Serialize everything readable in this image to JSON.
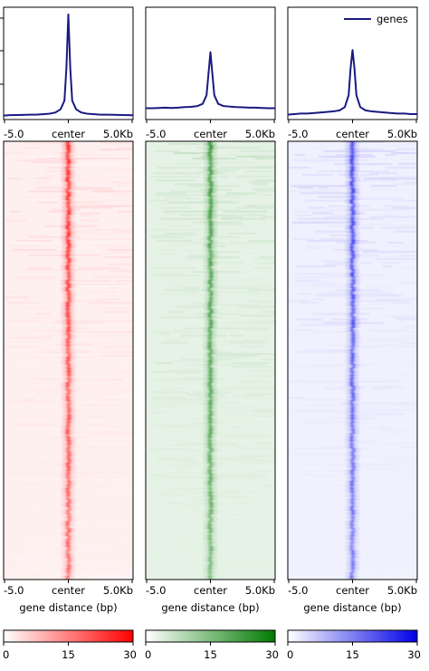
{
  "chart_data": {
    "type": "heatmap",
    "profile_legend": "genes",
    "x_ticks": [
      "-5.0",
      "center",
      "5.0Kb"
    ],
    "xlabel": "gene distance (bp)",
    "colorbar_ticks": [
      "0",
      "15",
      "30"
    ],
    "colorbar_range": [
      0,
      30
    ],
    "profile_x": [
      -5.0,
      -4.5,
      -4.0,
      -3.5,
      -3.0,
      -2.5,
      -2.0,
      -1.5,
      -1.0,
      -0.6,
      -0.3,
      -0.15,
      0,
      0.15,
      0.3,
      0.6,
      1.0,
      1.5,
      2.0,
      2.5,
      3.0,
      3.5,
      4.0,
      4.5,
      5.0
    ],
    "panels": [
      {
        "name": "red",
        "color": "#ff0000",
        "profile_line_color": "#1a1a80",
        "profile": [
          1.2,
          1.6,
          1.7,
          1.8,
          2.0,
          2.0,
          2.4,
          2.8,
          4.0,
          7.0,
          15.0,
          45.0,
          95.0,
          45.0,
          15.0,
          7.0,
          4.0,
          2.8,
          2.4,
          2.0,
          2.0,
          1.9,
          1.7,
          1.6,
          1.5
        ]
      },
      {
        "name": "green",
        "color": "#007a00",
        "profile_line_color": "#1a1a80",
        "profile": [
          8.0,
          8.0,
          8.2,
          8.5,
          8.2,
          8.5,
          9.0,
          9.2,
          10.0,
          12.0,
          20.0,
          40.0,
          60.0,
          40.0,
          20.0,
          12.0,
          10.0,
          9.5,
          9.0,
          8.8,
          8.5,
          8.5,
          8.2,
          8.0,
          8.0
        ]
      },
      {
        "name": "blue",
        "color": "#0000e6",
        "profile_line_color": "#1a1a80",
        "profile": [
          2.0,
          2.5,
          3.0,
          3.0,
          3.5,
          4.0,
          4.5,
          5.0,
          6.0,
          9.0,
          20.0,
          45.0,
          62.0,
          45.0,
          20.0,
          9.0,
          6.0,
          5.0,
          4.5,
          4.0,
          3.5,
          3.0,
          3.0,
          2.5,
          2.5
        ]
      }
    ]
  }
}
